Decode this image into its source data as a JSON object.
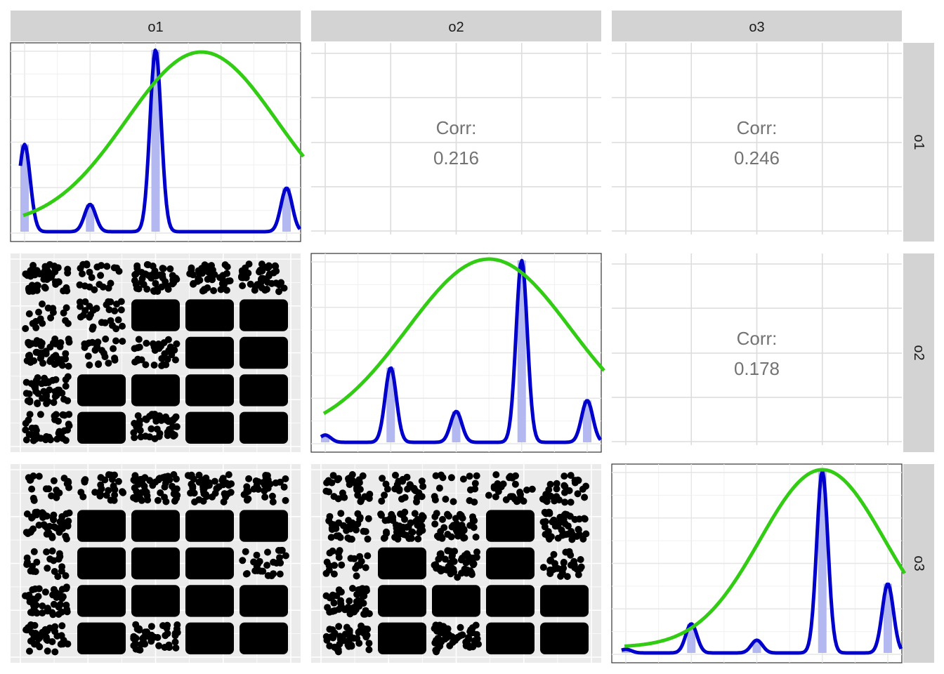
{
  "colors": {
    "strip_bg": "#d3d3d3",
    "panel_bg_jitter": "#ebebeb",
    "grid": "#dcdcdc",
    "density_line": "#0000cc",
    "normal_curve": "#33cc14",
    "hist_fill": "#b3b8f0",
    "corr_text": "#737373",
    "points": "#000000"
  },
  "strips": {
    "top": [
      "o1",
      "o2",
      "o3"
    ],
    "right": [
      "o1",
      "o2",
      "o3"
    ]
  },
  "chart_data": {
    "type": "pairs",
    "variables": [
      "o1",
      "o2",
      "o3"
    ],
    "levels": [
      1,
      2,
      3,
      4,
      5
    ],
    "correlations": [
      {
        "row": "o1",
        "col": "o2",
        "label": "Corr:",
        "value": "0.216"
      },
      {
        "row": "o1",
        "col": "o3",
        "label": "Corr:",
        "value": "0.246"
      },
      {
        "row": "o2",
        "col": "o3",
        "label": "Corr:",
        "value": "0.178"
      }
    ],
    "diagonal": [
      {
        "var": "o1",
        "proportions": [
          0.48,
          0.15,
          1.0,
          0.0,
          0.24
        ],
        "peak_levels": [
          2,
          3,
          4,
          5,
          1
        ],
        "normal_mean": 3.7,
        "normal_sd": 1.15,
        "normal_peak": 0.98
      },
      {
        "var": "o2",
        "proportions": [
          0.04,
          0.41,
          0.17,
          1.0,
          0.23
        ],
        "normal_mean": 3.5,
        "normal_sd": 1.25,
        "normal_peak": 1.0
      },
      {
        "var": "o3",
        "proportions": [
          0.02,
          0.16,
          0.07,
          1.0,
          0.38
        ],
        "normal_mean": 4.0,
        "normal_sd": 0.95,
        "normal_peak": 1.0
      }
    ],
    "scatter": [
      {
        "row": "o2",
        "col": "o1",
        "density": [
          [
            0.9,
            0.4,
            0.8,
            0.8,
            0.9
          ],
          [
            0.3,
            0.5,
            1,
            1,
            1
          ],
          [
            0.9,
            0.4,
            0.6,
            1,
            1
          ],
          [
            0.8,
            1,
            1,
            1,
            1
          ],
          [
            0.7,
            1,
            0.8,
            1,
            1
          ]
        ]
      },
      {
        "row": "o3",
        "col": "o1",
        "density": [
          [
            0.4,
            0.5,
            0.9,
            0.9,
            0.6
          ],
          [
            0.8,
            1,
            1,
            1,
            1
          ],
          [
            0.4,
            1,
            1,
            1,
            0.5
          ],
          [
            0.8,
            1,
            1,
            1,
            1
          ],
          [
            0.7,
            1,
            0.8,
            1,
            1
          ]
        ]
      },
      {
        "row": "o3",
        "col": "o2",
        "density": [
          [
            0.6,
            0.5,
            0.3,
            0.5,
            0.5
          ],
          [
            0.6,
            0.9,
            0.7,
            1,
            0.9
          ],
          [
            0.4,
            1,
            0.9,
            1,
            0.5
          ],
          [
            0.8,
            1,
            1,
            1,
            1
          ],
          [
            0.8,
            1,
            0.9,
            1,
            1
          ]
        ]
      }
    ]
  }
}
